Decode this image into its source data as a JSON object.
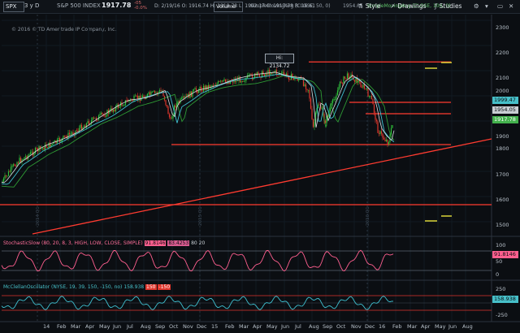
{
  "toolbar": {
    "symbol": "SPX",
    "timeframe": "3 y D",
    "instrument_name": "S&P 500 INDEX",
    "last_price": "1917.78",
    "change_top": "-05",
    "change_bottom": "-0.0%",
    "ohlc": "D: 2/19/16   O: 1916.74   H: 1918.78   L: 1902.17   C: 1917.78   R: 16.61",
    "volume_label": "Volume",
    "sma50_label": "SimpleMovingAvg (CLOSE, 50, 0)",
    "sma50_value": "1954.05",
    "sma100_label": "SimpleMovingAvg (CLOSE, 100, 0)",
    "buttons": {
      "style": "Style",
      "drawings": "Drawings",
      "studies": "Studies"
    }
  },
  "copyright": "© 2016 © TD Ameritrade IP Company, Inc.",
  "hi_annotation": "Hi: 2134.72",
  "price_axis": {
    "ticks": [
      "2300",
      "2200",
      "2100",
      "2000",
      "1900",
      "1800",
      "1700",
      "1600",
      "1500"
    ],
    "tags": [
      {
        "label": "1999.47",
        "color": "#47c0c9"
      },
      {
        "label": "1954.05",
        "color": "#c9ced3"
      },
      {
        "label": "1917.78",
        "color": "#43b14d"
      }
    ]
  },
  "time_axis": [
    "14",
    "Feb",
    "Mar",
    "Apr",
    "May",
    "Jun",
    "Jul",
    "Aug",
    "Sep",
    "Oct",
    "Nov",
    "Dec",
    "15",
    "Feb",
    "Mar",
    "Apr",
    "May",
    "Jun",
    "Jul",
    "Aug",
    "Sep",
    "Oct",
    "Nov",
    "Dec",
    "16",
    "Feb",
    "Mar",
    "Apr",
    "May",
    "Jun",
    "Aug"
  ],
  "year_watermarks": [
    "2014 Q1",
    "2015 Q1",
    "2016 Q1"
  ],
  "stochastic": {
    "label": "StochasticSlow (80, 20, 8, 3, HIGH, LOW, CLOSE, SIMPLE)",
    "value_k": "91.8146",
    "value_d": "83.4253",
    "upper": "80",
    "lower": "20",
    "ticks": [
      "100",
      "50",
      "0"
    ],
    "tag": "91.8146"
  },
  "mcclellan": {
    "label": "McClellanOscillator (NYSE, 19, 39, 150, -150, no)",
    "value": "158.938",
    "upper": "150",
    "lower": "-150",
    "ticks": [
      "250",
      "-250"
    ],
    "tag": "158.938"
  },
  "colors": {
    "background": "#0b0e12",
    "up_candle": "#2fbf3a",
    "down_candle": "#e0362c",
    "sma50": "#d8dde2",
    "sma100": "#3fc0d0",
    "sma200": "#2e9a34",
    "trend_lines": "#ff3b30",
    "stoch": "#ff5f8f",
    "mcclellan": "#3fc0d0"
  }
}
